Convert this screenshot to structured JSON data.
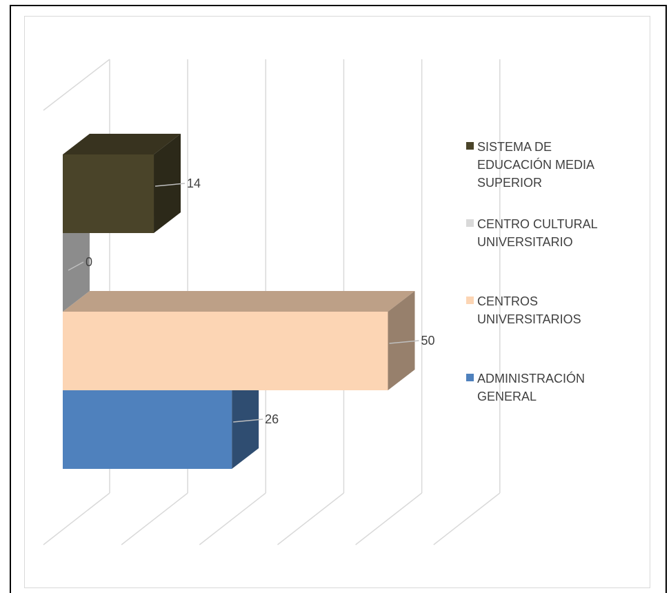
{
  "chart_data": {
    "type": "bar",
    "orientation": "horizontal",
    "three_d": true,
    "categories": [
      "ADMINISTRACIÓN GENERAL",
      "CENTROS UNIVERSITARIOS",
      "CENTRO CULTURAL UNIVERSITARIO",
      "SISTEMA DE EDUCACIÓN MEDIA SUPERIOR"
    ],
    "values": [
      26,
      50,
      0,
      14
    ],
    "data_labels": [
      "26",
      "50",
      "0",
      "14"
    ],
    "colors": [
      "#4f81bd",
      "#fcd5b4",
      "#d9d9d9",
      "#4a4429"
    ],
    "xlim": [
      0,
      60
    ],
    "grid": true,
    "legend_position": "right",
    "legend_order": [
      "SISTEMA DE EDUCACIÓN MEDIA SUPERIOR",
      "CENTRO CULTURAL UNIVERSITARIO",
      "CENTROS UNIVERSITARIOS",
      "ADMINISTRACIÓN GENERAL"
    ],
    "title": "",
    "xlabel": "",
    "ylabel": ""
  }
}
